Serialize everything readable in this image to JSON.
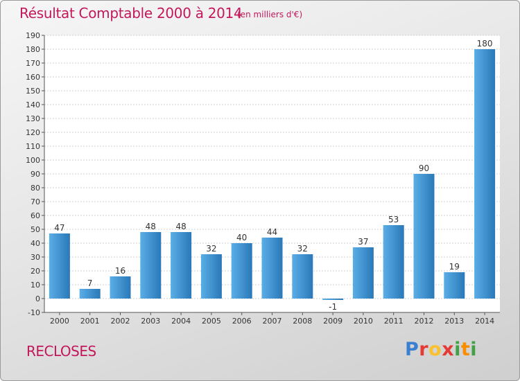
{
  "header": {
    "title": "Résultat Comptable 2000 à 2014",
    "subtitle": "(en milliers d'€)"
  },
  "footer": {
    "commune": "RECLOSES",
    "logo_letters": [
      "P",
      "r",
      "o",
      "x",
      "i",
      "t",
      "i"
    ],
    "logo_colors": [
      "#3b7fd1",
      "#e53935",
      "#fbc02d",
      "#e53935",
      "#43a047",
      "#fb8c00",
      "#43a047"
    ]
  },
  "chart_data": {
    "type": "bar",
    "categories": [
      "2000",
      "2001",
      "2002",
      "2003",
      "2004",
      "2005",
      "2006",
      "2007",
      "2008",
      "2009",
      "2010",
      "2011",
      "2012",
      "2013",
      "2014"
    ],
    "values": [
      47,
      7,
      16,
      48,
      48,
      32,
      40,
      44,
      32,
      -1,
      37,
      53,
      90,
      19,
      180
    ],
    "data_labels": [
      "47",
      "7",
      "16",
      "48",
      "48",
      "32",
      "40",
      "44",
      "32",
      "-1",
      "37",
      "53",
      "90",
      "19",
      "180"
    ],
    "ylim": [
      -10,
      190
    ],
    "yticks": [
      -10,
      0,
      10,
      20,
      30,
      40,
      50,
      60,
      70,
      80,
      90,
      100,
      110,
      120,
      130,
      140,
      150,
      160,
      170,
      180,
      190
    ],
    "grid": true,
    "bar_color_light": "#5aaee6",
    "bar_color_dark": "#2a78b8",
    "title": "Résultat Comptable 2000 à 2014",
    "xlabel": "",
    "ylabel": ""
  }
}
